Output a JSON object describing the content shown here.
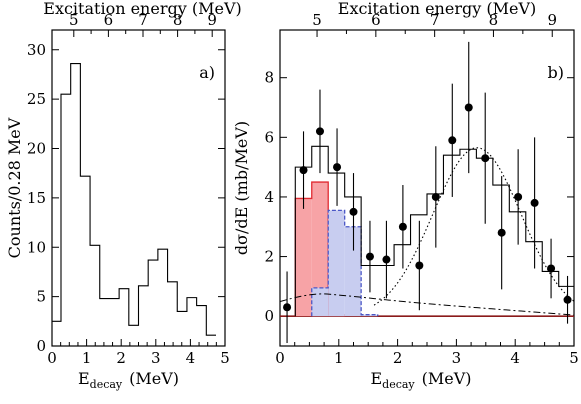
{
  "chart_data": [
    {
      "panel_id": "a",
      "type": "histogram",
      "panel_label": "a)",
      "top_axis_label": "Excitation energy  (MeV)",
      "top_axis_ticks": [
        "5",
        "6",
        "7",
        "8",
        "9"
      ],
      "xlabel_main": "E",
      "xlabel_sub": "decay",
      "xlabel_unit": "(MeV)",
      "ylabel": "Counts/0.28 MeV",
      "xlim": [
        0,
        5
      ],
      "ylim": [
        0,
        32
      ],
      "xticks": [
        0,
        1,
        2,
        3,
        4,
        5
      ],
      "yticks": [
        0,
        5,
        10,
        15,
        20,
        25,
        30
      ],
      "top_ticks_energy": [
        5,
        6,
        7,
        8,
        9
      ],
      "bin_width": 0.28,
      "x0": -0.02,
      "counts": [
        2.5,
        25.5,
        28.6,
        17.2,
        10.2,
        4.8,
        4.8,
        5.8,
        2.1,
        6.1,
        8.7,
        9.8,
        6.5,
        3.5,
        4.9,
        4.1,
        1.1
      ]
    },
    {
      "panel_id": "b",
      "type": "histogram_with_points",
      "panel_label": "b)",
      "top_axis_label": "Excitation energy  (MeV)",
      "top_axis_ticks": [
        "5",
        "6",
        "7",
        "8",
        "9"
      ],
      "xlabel_main": "E",
      "xlabel_sub": "decay",
      "xlabel_unit": "(MeV)",
      "ylabel": "dσ/dE  (mb/MeV)",
      "xlim": [
        0,
        5
      ],
      "ylim": [
        -1,
        9.6
      ],
      "xticks": [
        0,
        1,
        2,
        3,
        4,
        5
      ],
      "yticks": [
        0,
        2,
        4,
        6,
        8
      ],
      "top_ticks_energy": [
        5,
        6,
        7,
        8,
        9
      ],
      "bin_width": 0.28,
      "data_points": [
        {
          "x": 0.12,
          "y": 0.3,
          "err": 1.2
        },
        {
          "x": 0.4,
          "y": 4.9,
          "err": 1.3
        },
        {
          "x": 0.68,
          "y": 6.2,
          "err": 1.4
        },
        {
          "x": 0.97,
          "y": 5.0,
          "err": 1.3
        },
        {
          "x": 1.25,
          "y": 3.5,
          "err": 1.3
        },
        {
          "x": 1.53,
          "y": 2.0,
          "err": 1.2
        },
        {
          "x": 1.81,
          "y": 1.9,
          "err": 1.3
        },
        {
          "x": 2.09,
          "y": 3.0,
          "err": 1.4
        },
        {
          "x": 2.37,
          "y": 1.7,
          "err": 1.5
        },
        {
          "x": 2.65,
          "y": 4.0,
          "err": 1.7
        },
        {
          "x": 2.93,
          "y": 5.9,
          "err": 1.9
        },
        {
          "x": 3.21,
          "y": 7.0,
          "err": 2.2
        },
        {
          "x": 3.49,
          "y": 5.3,
          "err": 2.2
        },
        {
          "x": 3.77,
          "y": 2.8,
          "err": 1.9
        },
        {
          "x": 4.05,
          "y": 4.0,
          "err": 1.6
        },
        {
          "x": 4.33,
          "y": 3.8,
          "err": 2.2
        },
        {
          "x": 4.61,
          "y": 1.6,
          "err": 1.0
        },
        {
          "x": 4.89,
          "y": 0.55,
          "err": 0.8
        }
      ],
      "total_fit_steps": [
        {
          "x0": 0.26,
          "x1": 0.54,
          "y": 5.0
        },
        {
          "x0": 0.54,
          "x1": 0.82,
          "y": 5.7
        },
        {
          "x0": 0.82,
          "x1": 1.1,
          "y": 4.8
        },
        {
          "x0": 1.1,
          "x1": 1.38,
          "y": 4.0
        },
        {
          "x0": 1.38,
          "x1": 1.66,
          "y": 1.7
        },
        {
          "x0": 1.66,
          "x1": 1.94,
          "y": 1.7
        },
        {
          "x0": 1.94,
          "x1": 2.22,
          "y": 2.4
        },
        {
          "x0": 2.22,
          "x1": 2.5,
          "y": 3.4
        },
        {
          "x0": 2.5,
          "x1": 2.78,
          "y": 4.1
        },
        {
          "x0": 2.78,
          "x1": 3.06,
          "y": 5.4
        },
        {
          "x0": 3.06,
          "x1": 3.34,
          "y": 5.6
        },
        {
          "x0": 3.34,
          "x1": 3.62,
          "y": 5.3
        },
        {
          "x0": 3.62,
          "x1": 3.9,
          "y": 4.4
        },
        {
          "x0": 3.9,
          "x1": 4.18,
          "y": 3.5
        },
        {
          "x0": 4.18,
          "x1": 4.46,
          "y": 2.5
        },
        {
          "x0": 4.46,
          "x1": 4.74,
          "y": 1.5
        },
        {
          "x0": 4.74,
          "x1": 5.0,
          "y": 1.0
        }
      ],
      "red_steps": [
        {
          "x0": 0.26,
          "x1": 0.54,
          "y": 3.95
        },
        {
          "x0": 0.54,
          "x1": 0.82,
          "y": 4.5
        },
        {
          "x0": 0.82,
          "x1": 1.1,
          "y": 0.05
        }
      ],
      "blue_steps": [
        {
          "x0": 0.54,
          "x1": 0.82,
          "y": 0.95
        },
        {
          "x0": 0.82,
          "x1": 1.1,
          "y": 3.55
        },
        {
          "x0": 1.1,
          "x1": 1.38,
          "y": 3.0
        },
        {
          "x0": 1.38,
          "x1": 1.66,
          "y": 0.05
        }
      ],
      "gauss_center": 3.35,
      "gauss_sigma": 0.75,
      "gauss_amp": 5.65,
      "gauss_offset": 0.0,
      "dashdot_peak": 0.75,
      "dashdot_peak_x": 0.75,
      "colors": {
        "red_fill": "#f7a3a6",
        "red_line": "#e12b32",
        "blue_fill": "#c8cdf0",
        "blue_line": "#4b57c6",
        "zero_line": "#8b1a1a"
      }
    }
  ]
}
